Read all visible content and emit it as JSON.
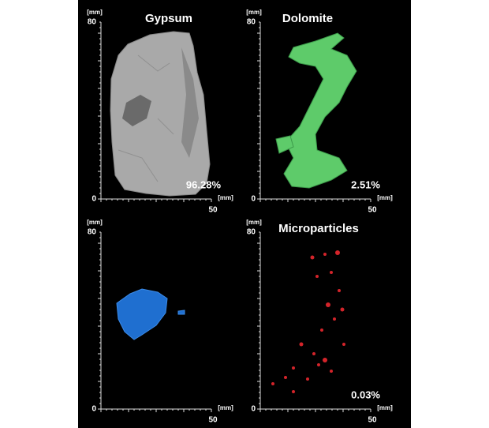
{
  "panels": [
    {
      "title": "Gypsum",
      "percentage": "96.28%",
      "axis": {
        "y_unit": "[mm]",
        "y_max": "80",
        "origin": "0",
        "x_max": "50",
        "x_unit": "[mm]"
      }
    },
    {
      "title": "Dolomite",
      "percentage": "2.51%",
      "axis": {
        "y_unit": "[mm]",
        "y_max": "80",
        "origin": "0",
        "x_max": "50",
        "x_unit": "[mm]"
      }
    },
    {
      "axis": {
        "y_unit": "[mm]",
        "y_max": "80",
        "origin": "0",
        "x_max": "50",
        "x_unit": "[mm]"
      }
    },
    {
      "title": "Microparticles",
      "percentage": "0.03%",
      "axis": {
        "y_unit": "[mm]",
        "y_max": "80",
        "origin": "0",
        "x_max": "50",
        "x_unit": "[mm]"
      }
    }
  ]
}
